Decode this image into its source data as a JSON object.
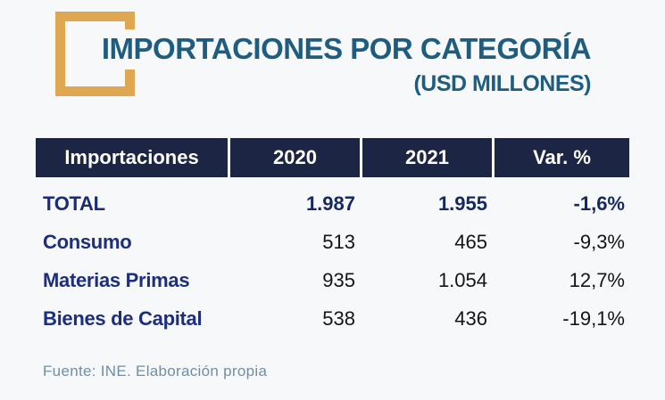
{
  "page": {
    "background": "#F7F8FA",
    "accent_color": "#DFA750",
    "title_color": "#1E5C80",
    "header_bg": "#1C2543"
  },
  "header": {
    "title": "IMPORTACIONES POR CATEGORÍA",
    "subtitle": "(USD MILLONES)"
  },
  "table": {
    "columns": [
      "Importaciones",
      "2020",
      "2021",
      "Var. %"
    ],
    "rows": [
      {
        "label": "TOTAL",
        "y2020": "1.987",
        "y2021": "1.955",
        "var": "-1,6%"
      },
      {
        "label": "Consumo",
        "y2020": "513",
        "y2021": "465",
        "var": "-9,3%"
      },
      {
        "label": "Materias Primas",
        "y2020": "935",
        "y2021": "1.054",
        "var": "12,7%"
      },
      {
        "label": "Bienes de Capital",
        "y2020": "538",
        "y2021": "436",
        "var": "-19,1%"
      }
    ]
  },
  "footer": {
    "source": "Fuente: INE. Elaboración propia"
  },
  "chart_data": {
    "type": "table",
    "title": "IMPORTACIONES POR CATEGORÍA",
    "subtitle": "(USD MILLONES)",
    "columns": [
      "Importaciones",
      "2020",
      "2021",
      "Var. %"
    ],
    "rows": [
      [
        "TOTAL",
        "1.987",
        "1.955",
        "-1,6%"
      ],
      [
        "Consumo",
        "513",
        "465",
        "-9,3%"
      ],
      [
        "Materias Primas",
        "935",
        "1.054",
        "12,7%"
      ],
      [
        "Bienes de Capital",
        "538",
        "436",
        "-19,1%"
      ]
    ],
    "numeric": {
      "categories": [
        "TOTAL",
        "Consumo",
        "Materias Primas",
        "Bienes de Capital"
      ],
      "series": [
        {
          "name": "2020",
          "values": [
            1987,
            513,
            935,
            538
          ]
        },
        {
          "name": "2021",
          "values": [
            1955,
            465,
            1054,
            436
          ]
        },
        {
          "name": "Var. %",
          "values": [
            -1.6,
            -9.3,
            12.7,
            -19.1
          ]
        }
      ]
    },
    "source": "Fuente: INE. Elaboración propia"
  }
}
